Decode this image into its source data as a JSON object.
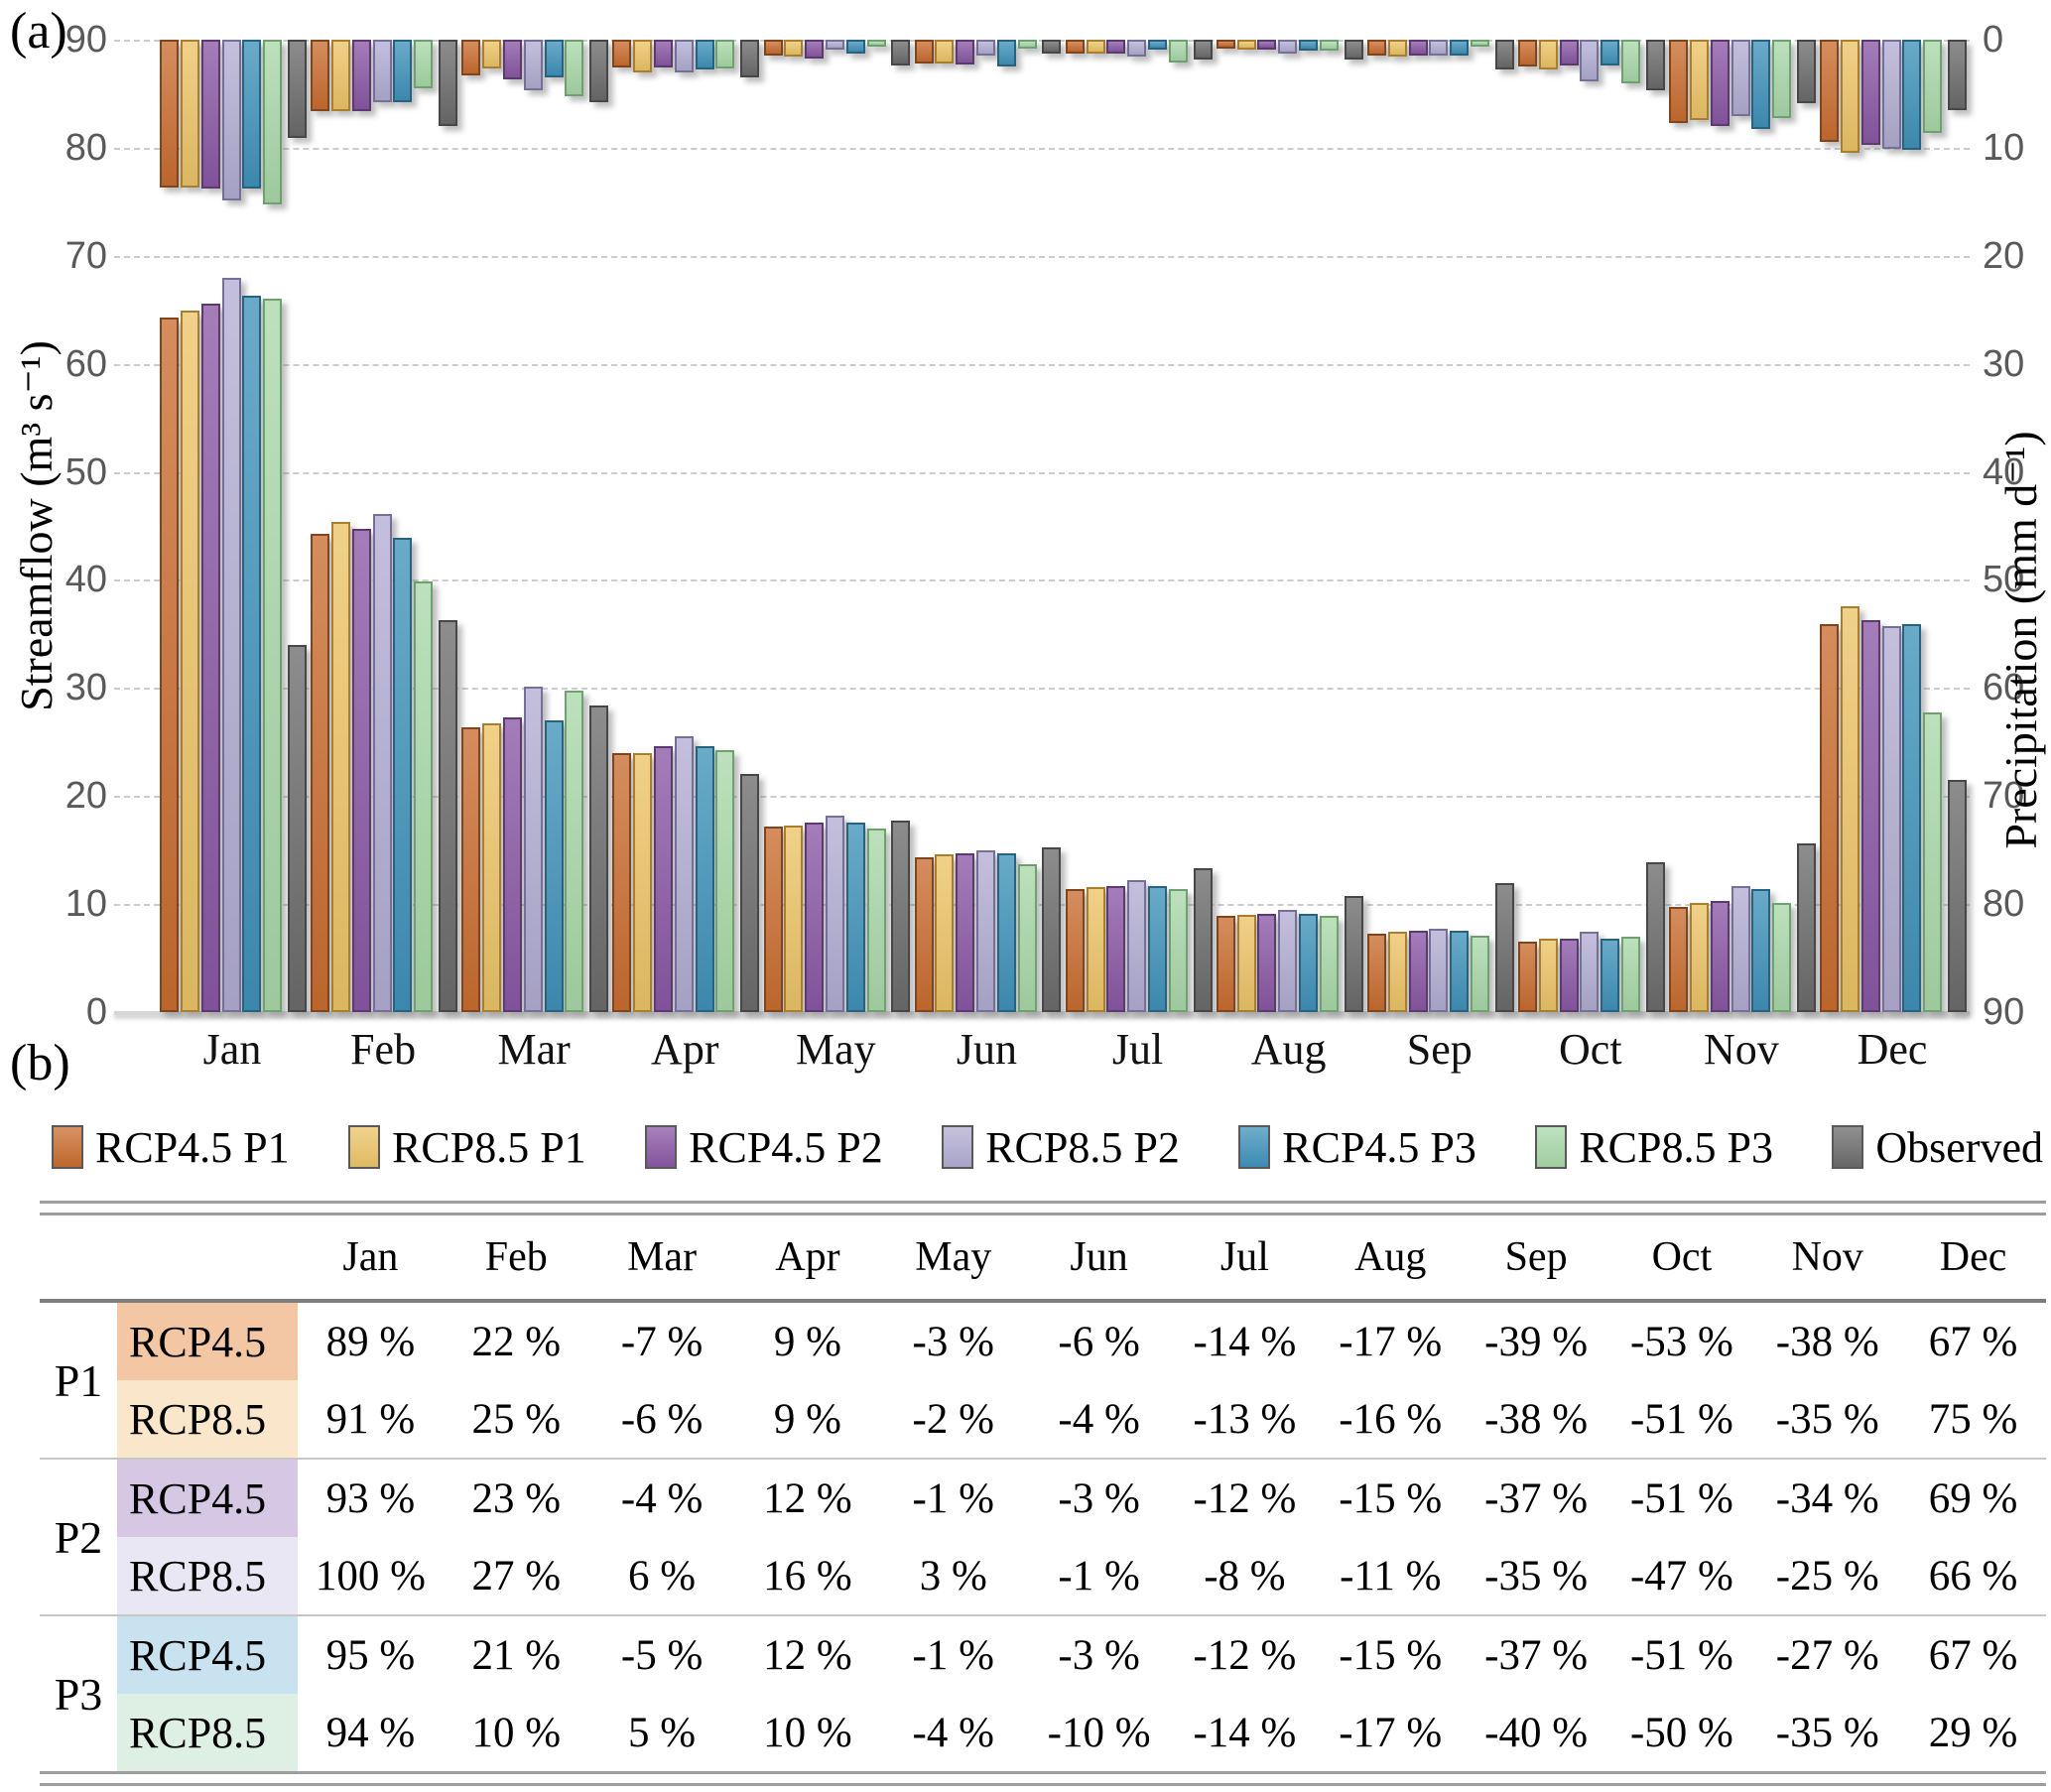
{
  "panel_a_label": "(a)",
  "panel_b_label": "(b)",
  "months": [
    "Jan",
    "Feb",
    "Mar",
    "Apr",
    "May",
    "Jun",
    "Jul",
    "Aug",
    "Sep",
    "Oct",
    "Nov",
    "Dec"
  ],
  "axis_left_ticks": [
    "90",
    "80",
    "70",
    "60",
    "50",
    "40",
    "30",
    "20",
    "10",
    "0"
  ],
  "axis_right_ticks": [
    "0",
    "10",
    "20",
    "30",
    "40",
    "50",
    "60",
    "70",
    "80",
    "90"
  ],
  "legend": [
    {
      "label": "RCP4.5 P1",
      "color": "#c96d30",
      "border": "#7e451e"
    },
    {
      "label": "RCP8.5 P1",
      "color": "#ecc468",
      "border": "#a97f2f"
    },
    {
      "label": "RCP4.5 P2",
      "color": "#8a58a5",
      "border": "#5b3a70"
    },
    {
      "label": "RCP8.5 P2",
      "color": "#b2add2",
      "border": "#74709a"
    },
    {
      "label": "RCP4.5 P3",
      "color": "#4092ba",
      "border": "#28627f"
    },
    {
      "label": "RCP8.5 P3",
      "color": "#a9d8a9",
      "border": "#6fa06f"
    },
    {
      "label": "Observed",
      "color": "#6c6c6c",
      "border": "#474747"
    }
  ],
  "chart_data": {
    "type": "bar",
    "title": "",
    "categories": [
      "Jan",
      "Feb",
      "Mar",
      "Apr",
      "May",
      "Jun",
      "Jul",
      "Aug",
      "Sep",
      "Oct",
      "Nov",
      "Dec"
    ],
    "grid": true,
    "legend_position": "bottom",
    "streamflow": {
      "ylabel": "Streamflow (m³ s⁻¹)",
      "ylim": [
        0,
        90
      ],
      "axis_side": "left",
      "series": [
        {
          "name": "RCP4.5 P1",
          "values": [
            64.3,
            44.3,
            26.4,
            24.0,
            17.2,
            14.3,
            11.4,
            8.9,
            7.3,
            6.5,
            9.7,
            35.9
          ]
        },
        {
          "name": "RCP8.5 P1",
          "values": [
            64.9,
            45.4,
            26.7,
            24.0,
            17.3,
            14.6,
            11.6,
            9.0,
            7.4,
            6.8,
            10.1,
            37.6
          ]
        },
        {
          "name": "RCP4.5 P2",
          "values": [
            65.6,
            44.7,
            27.3,
            24.6,
            17.5,
            14.7,
            11.7,
            9.1,
            7.5,
            6.8,
            10.3,
            36.3
          ]
        },
        {
          "name": "RCP8.5 P2",
          "values": [
            68.0,
            46.1,
            30.1,
            25.5,
            18.2,
            15.0,
            12.2,
            9.5,
            7.7,
            7.4,
            11.7,
            35.7
          ]
        },
        {
          "name": "RCP4.5 P3",
          "values": [
            66.3,
            43.9,
            27.0,
            24.6,
            17.5,
            14.7,
            11.7,
            9.1,
            7.5,
            6.8,
            11.4,
            35.9
          ]
        },
        {
          "name": "RCP8.5 P3",
          "values": [
            66.0,
            39.9,
            29.8,
            24.2,
            17.0,
            13.7,
            11.4,
            8.9,
            7.1,
            7.0,
            10.1,
            27.7
          ]
        },
        {
          "name": "Observed",
          "values": [
            34.0,
            36.3,
            28.4,
            22.0,
            17.7,
            15.2,
            13.3,
            10.7,
            11.9,
            13.9,
            15.6,
            21.5
          ]
        }
      ]
    },
    "precipitation": {
      "ylabel": "Precipitation (mm d⁻¹)",
      "ylim": [
        0,
        90
      ],
      "axis_side": "right",
      "inverted": true,
      "bars_hang_from_top": true,
      "series": [
        {
          "name": "RCP4.5 P1",
          "values": [
            13.7,
            6.6,
            3.3,
            2.6,
            1.5,
            2.2,
            1.3,
            0.8,
            1.5,
            2.5,
            7.7,
            9.5
          ]
        },
        {
          "name": "RCP8.5 P1",
          "values": [
            13.7,
            6.6,
            2.7,
            3.0,
            1.6,
            2.2,
            1.3,
            0.9,
            1.6,
            2.8,
            7.4,
            10.5
          ]
        },
        {
          "name": "RCP4.5 P2",
          "values": [
            13.8,
            6.6,
            3.7,
            2.6,
            1.7,
            2.3,
            1.3,
            0.9,
            1.5,
            2.4,
            8.0,
            9.7
          ]
        },
        {
          "name": "RCP8.5 P2",
          "values": [
            14.9,
            5.8,
            4.7,
            3.0,
            0.9,
            1.5,
            1.6,
            1.3,
            1.5,
            3.9,
            7.1,
            10.1
          ]
        },
        {
          "name": "RCP4.5 P3",
          "values": [
            13.8,
            5.8,
            3.5,
            2.8,
            1.3,
            2.5,
            0.9,
            1.0,
            1.5,
            2.4,
            8.3,
            10.2
          ]
        },
        {
          "name": "RCP8.5 P3",
          "values": [
            15.2,
            4.5,
            5.2,
            2.7,
            0.6,
            0.8,
            2.1,
            1.0,
            0.6,
            4.0,
            7.3,
            8.6
          ]
        },
        {
          "name": "Observed",
          "values": [
            9.1,
            8.0,
            5.8,
            3.5,
            2.4,
            1.3,
            1.8,
            1.8,
            2.8,
            4.7,
            5.9,
            6.5
          ]
        }
      ]
    }
  },
  "table": {
    "column_headers": [
      "Jan",
      "Feb",
      "Mar",
      "Apr",
      "May",
      "Jun",
      "Jul",
      "Aug",
      "Sep",
      "Oct",
      "Nov",
      "Dec"
    ],
    "row_groups": [
      {
        "period": "P1",
        "rows": [
          {
            "scenario": "RCP4.5",
            "tint": "#f3c6a4",
            "values": [
              "89 %",
              "22 %",
              "-7 %",
              "9 %",
              "-3 %",
              "-6 %",
              "-14 %",
              "-17 %",
              "-39 %",
              "-53 %",
              "-38 %",
              "67 %"
            ]
          },
          {
            "scenario": "RCP8.5",
            "tint": "#fae7cb",
            "values": [
              "91 %",
              "25 %",
              "-6 %",
              "9 %",
              "-2 %",
              "-4 %",
              "-13 %",
              "-16 %",
              "-38 %",
              "-51 %",
              "-35 %",
              "75 %"
            ]
          }
        ]
      },
      {
        "period": "P2",
        "rows": [
          {
            "scenario": "RCP4.5",
            "tint": "#d6c8e5",
            "values": [
              "93 %",
              "23 %",
              "-4 %",
              "12 %",
              "-1 %",
              "-3 %",
              "-12 %",
              "-15 %",
              "-37 %",
              "-51 %",
              "-34 %",
              "69 %"
            ]
          },
          {
            "scenario": "RCP8.5",
            "tint": "#e9e7f3",
            "values": [
              "100 %",
              "27 %",
              "6 %",
              "16 %",
              "3 %",
              "-1 %",
              "-8 %",
              "-11 %",
              "-35 %",
              "-47 %",
              "-25 %",
              "66 %"
            ]
          }
        ]
      },
      {
        "period": "P3",
        "rows": [
          {
            "scenario": "RCP4.5",
            "tint": "#c8e2ef",
            "values": [
              "95 %",
              "21 %",
              "-5 %",
              "12 %",
              "-1 %",
              "-3 %",
              "-12 %",
              "-15 %",
              "-37 %",
              "-51 %",
              "-27 %",
              "67 %"
            ]
          },
          {
            "scenario": "RCP8.5",
            "tint": "#def0e4",
            "values": [
              "94 %",
              "10 %",
              "5 %",
              "10 %",
              "-4 %",
              "-10 %",
              "-14 %",
              "-17 %",
              "-40 %",
              "-50 %",
              "-35 %",
              "29 %"
            ]
          }
        ]
      }
    ]
  }
}
